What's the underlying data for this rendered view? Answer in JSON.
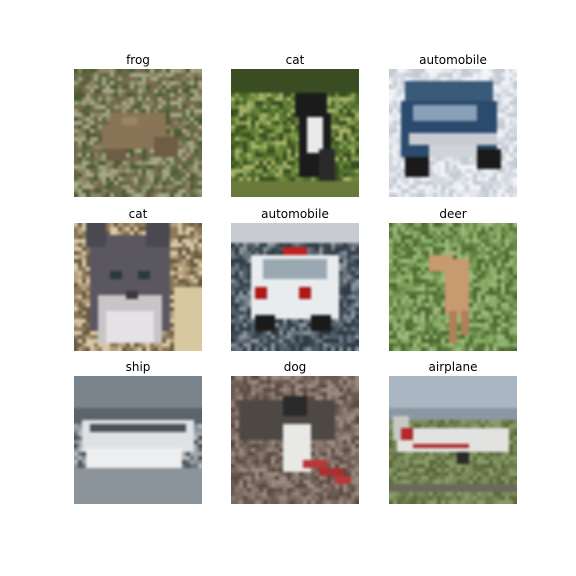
{
  "images": [
    {
      "label": "frog",
      "palette": [
        "#6f6b4d",
        "#8b8763",
        "#5a6a3e",
        "#9aa07a",
        "#7a6a50",
        "#4e5a34",
        "#a8a88a"
      ],
      "subject_color": "#8a7456",
      "subject_shape": "frog",
      "background": "grass"
    },
    {
      "label": "cat",
      "palette": [
        "#4c6a2a",
        "#6f8a3c",
        "#8aa055",
        "#3a4d22",
        "#a8b46a",
        "#5d7a35"
      ],
      "subject_color": "#1b1b1b",
      "subject_shape": "cat-standing",
      "background": "grass"
    },
    {
      "label": "automobile",
      "palette": [
        "#e4e8ee",
        "#d2d8df",
        "#f2f4f6",
        "#c4cbd4"
      ],
      "subject_color": "#2a4a6e",
      "subject_shape": "car-front",
      "background": "light"
    },
    {
      "label": "cat",
      "palette": [
        "#b8a07a",
        "#8a7a5a",
        "#6a5a42",
        "#d8c8a8"
      ],
      "subject_color": "#5a5760",
      "subject_shape": "cat-face",
      "background": "warm"
    },
    {
      "label": "automobile",
      "palette": [
        "#3a4752",
        "#525e68",
        "#6a7680",
        "#2e3a44",
        "#8a949c"
      ],
      "subject_color": "#e8ecef",
      "subject_shape": "police-car",
      "background": "road"
    },
    {
      "label": "deer",
      "palette": [
        "#6a8a4a",
        "#7ea05a",
        "#5a7a3a",
        "#8ab06a",
        "#a0b880",
        "#4e6a32"
      ],
      "subject_color": "#c89a70",
      "subject_shape": "deer",
      "background": "grass"
    },
    {
      "label": "ship",
      "palette": [
        "#8a929a",
        "#6a7278",
        "#a0a8ae",
        "#4a5258",
        "#b4bcc2"
      ],
      "subject_color": "#dfe2e4",
      "subject_shape": "ship",
      "background": "sea"
    },
    {
      "label": "dog",
      "palette": [
        "#7a6a60",
        "#8a7a70",
        "#6a5a52",
        "#9a8a80",
        "#5a4a44"
      ],
      "subject_color": "#e8e8e6",
      "subject_shape": "dog",
      "background": "ground"
    },
    {
      "label": "airplane",
      "palette": [
        "#7a8a5a",
        "#8a9a6a",
        "#6a7a4a",
        "#5a6a3a"
      ],
      "subject_color": "#e2e2e0",
      "subject_shape": "airplane",
      "background": "runway"
    }
  ]
}
